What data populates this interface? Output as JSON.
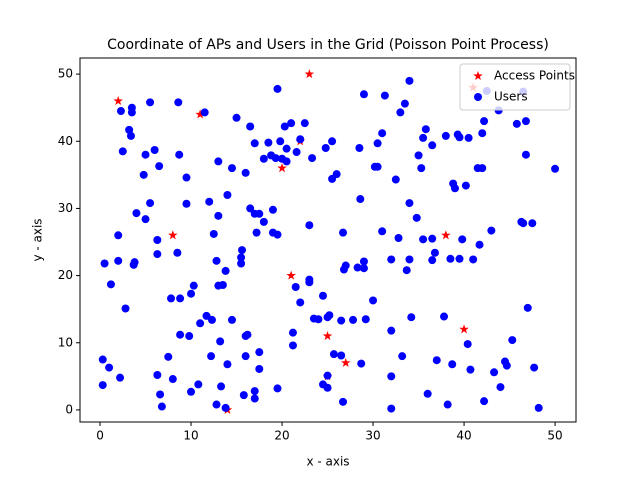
{
  "chart_data": {
    "type": "scatter",
    "title": "Coordinate of APs and Users in the Grid (Poisson Point Process)",
    "xlabel": "x - axis",
    "ylabel": "y - axis",
    "xlim": [
      -2.2,
      52.3
    ],
    "ylim": [
      -1.8,
      52.4
    ],
    "xticks": [
      0,
      10,
      20,
      30,
      40,
      50
    ],
    "yticks": [
      0,
      10,
      20,
      30,
      40,
      50
    ],
    "legend": "upper right",
    "series": [
      {
        "name": "Access Points",
        "color": "#ff0000",
        "marker": "star",
        "x": [
          2,
          11,
          23,
          22,
          20,
          8,
          21,
          25,
          27,
          14,
          25,
          38,
          40,
          41
        ],
        "y": [
          46,
          44,
          50,
          40,
          36,
          26,
          20,
          11,
          7,
          0,
          5,
          26,
          12,
          48
        ]
      },
      {
        "name": "Users",
        "color": "#0000ff",
        "marker": "circle",
        "x": [
          0.3,
          0.3,
          0.5,
          1,
          1.2,
          2,
          2,
          2.2,
          2.3,
          2.5,
          2.8,
          3.2,
          3.4,
          3.5,
          3.5,
          3.7,
          3.8,
          4,
          4.8,
          5,
          5,
          5.5,
          5.5,
          6,
          6.3,
          6.3,
          6.3,
          6.5,
          6.6,
          6.8,
          7.5,
          7.8,
          8,
          8.5,
          8.6,
          8.7,
          8.8,
          8.8,
          9.5,
          9.5,
          9.8,
          10,
          10,
          10.3,
          10.8,
          11,
          11.5,
          11.7,
          12,
          12.2,
          12.3,
          12.5,
          12.8,
          12.8,
          13,
          13,
          13,
          13.2,
          13.3,
          13.5,
          13.8,
          13.8,
          14,
          14,
          14.5,
          14.5,
          15,
          15.5,
          15.5,
          15.6,
          15.8,
          16,
          16,
          16,
          16.2,
          16.5,
          16.5,
          17,
          17,
          17,
          17,
          17.2,
          17.5,
          17.5,
          17.5,
          18,
          18,
          18.5,
          18.8,
          19,
          19,
          19.3,
          19.5,
          19.5,
          19.5,
          19.8,
          20,
          20.3,
          20.5,
          20.5,
          21,
          21.2,
          21.2,
          21.5,
          21.6,
          22,
          22,
          22.5,
          23,
          23,
          23,
          23.3,
          23.5,
          24,
          24.5,
          24.5,
          24.8,
          25,
          25,
          25,
          25.2,
          25.5,
          25.7,
          25.5,
          26,
          26.5,
          26.5,
          26.7,
          26.7,
          26.8,
          27,
          27.8,
          28.3,
          28.5,
          28.6,
          28.7,
          29,
          29,
          29,
          29.2,
          30,
          30.2,
          30.5,
          30.5,
          31,
          31,
          31.3,
          32,
          32,
          32,
          32,
          32.5,
          32.8,
          33,
          33.2,
          33.5,
          33.7,
          34,
          34,
          34,
          34.2,
          34.8,
          35,
          35.3,
          35.5,
          35.5,
          35.8,
          36,
          36.5,
          36.5,
          36.5,
          36.8,
          37,
          37.8,
          38,
          38.2,
          38.5,
          38.7,
          38.8,
          39,
          39.3,
          39.5,
          39.5,
          39.8,
          40.2,
          40.4,
          40.5,
          40.7,
          41,
          41.5,
          41.7,
          42,
          42,
          42.2,
          42.2,
          42.5,
          43,
          43.3,
          43.8,
          44,
          44.5,
          44.7,
          45.3,
          45.8,
          46.3,
          46.5,
          46.8,
          46.8,
          46.5,
          47,
          47.5,
          47.7,
          48.2,
          50
        ],
        "y": [
          7.5,
          3.7,
          21.8,
          6.3,
          18.7,
          26,
          22.2,
          4.8,
          44.5,
          38.5,
          15.1,
          41.7,
          40.8,
          45,
          44.3,
          21.6,
          22,
          29.3,
          35,
          38,
          28.4,
          30.8,
          45.8,
          38.7,
          25.3,
          23.2,
          5.2,
          36.3,
          2.3,
          0.5,
          7.9,
          16.6,
          4.6,
          23.4,
          45.8,
          38,
          16.6,
          11.2,
          34.6,
          30.7,
          11,
          17.3,
          2.7,
          18.5,
          3.8,
          12.9,
          44.3,
          14,
          31,
          8,
          13.4,
          26.2,
          22.2,
          0.8,
          37,
          18.5,
          28.9,
          10.2,
          3.5,
          18.6,
          0.3,
          20.7,
          32,
          6.8,
          13.4,
          36,
          43.5,
          21.8,
          22.7,
          23.8,
          2.2,
          35.3,
          11,
          8,
          11.2,
          30,
          42.2,
          39.7,
          29.2,
          1.7,
          2.8,
          26.4,
          29.2,
          8.6,
          6.1,
          37.4,
          28,
          39.8,
          37.9,
          26.4,
          29.8,
          37.5,
          3.2,
          26.1,
          47.8,
          40,
          37.4,
          42.2,
          38.9,
          37,
          42.7,
          9.6,
          11.5,
          18.3,
          38.4,
          16,
          40.3,
          42.7,
          27.5,
          19.4,
          19,
          37.5,
          13.6,
          13.5,
          17,
          3.8,
          39,
          5.1,
          3.3,
          13.8,
          14.1,
          40,
          8.3,
          34.4,
          35.1,
          8.1,
          13.3,
          1.2,
          26.4,
          20.9,
          21.5,
          13.4,
          21.2,
          39,
          31.4,
          6.9,
          47,
          21.1,
          22.1,
          13.5,
          16.3,
          36.2,
          36.2,
          39.7,
          26.6,
          41.2,
          46.8,
          11.8,
          22.4,
          5,
          0.2,
          34.3,
          25.6,
          44.3,
          8,
          45.6,
          20.8,
          30.8,
          22.4,
          49,
          13.8,
          28.6,
          37.9,
          36,
          40.5,
          25.4,
          41.8,
          2.4,
          39.4,
          25.5,
          22.3,
          23.4,
          7.4,
          13.9,
          40.8,
          0.8,
          22.5,
          6.8,
          33.7,
          33,
          41,
          40.6,
          22.5,
          25.4,
          33.4,
          9.8,
          40.5,
          6,
          22.4,
          36,
          24.6,
          36,
          41.2,
          43,
          1.3,
          47.5,
          26.7,
          5.6,
          44.6,
          3.4,
          7.2,
          6.6,
          10.4,
          42.6,
          28,
          47.4,
          43,
          38,
          27.8,
          15.2,
          27.8,
          6.3,
          0.3,
          35.9
        ]
      }
    ]
  }
}
